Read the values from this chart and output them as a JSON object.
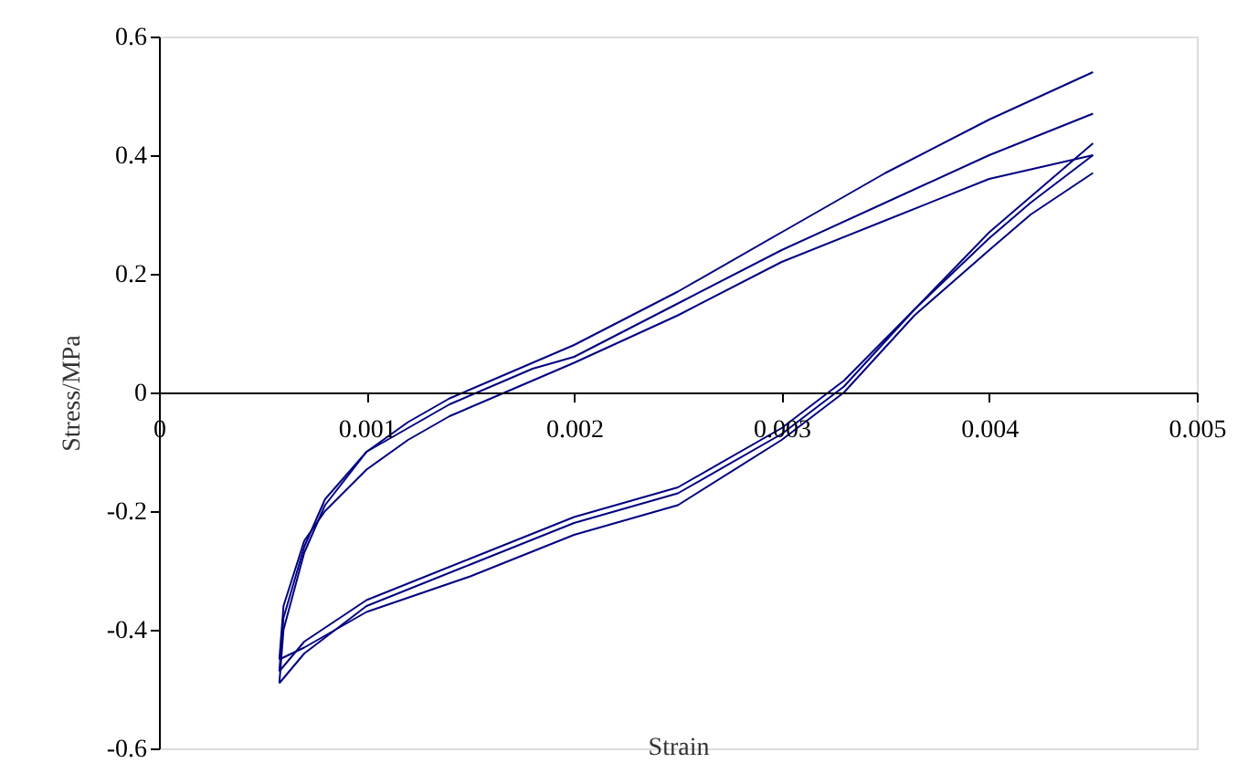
{
  "chart_data": {
    "type": "line",
    "xlabel": "Strain",
    "ylabel": "Stress/MPa",
    "xlim": [
      0,
      0.005
    ],
    "xticks": [
      0,
      0.001,
      0.002,
      0.003,
      0.004,
      0.005
    ],
    "ylim": [
      -0.6,
      0.6
    ],
    "yticks": [
      -0.6,
      -0.4,
      -0.2,
      0,
      0.2,
      0.4,
      0.6
    ],
    "grid": false,
    "legend": false,
    "marker": "none",
    "line_style": "solid",
    "series": [
      {
        "color": "#000080",
        "x": [
          0.00058,
          0.0006,
          0.0007,
          0.0008,
          0.001,
          0.0012,
          0.0014,
          0.0016,
          0.0018,
          0.002,
          0.0025,
          0.003,
          0.0035,
          0.004,
          0.0045
        ],
        "values": [
          -0.49,
          -0.4,
          -0.27,
          -0.19,
          -0.1,
          -0.05,
          -0.01,
          0.02,
          0.05,
          0.08,
          0.17,
          0.27,
          0.37,
          0.46,
          0.54
        ]
      },
      {
        "color": "#000080",
        "x": [
          0.00058,
          0.0007,
          0.001,
          0.0015,
          0.002,
          0.0025,
          0.003,
          0.0033,
          0.00364,
          0.004,
          0.0042,
          0.0045
        ],
        "values": [
          -0.49,
          -0.44,
          -0.36,
          -0.29,
          -0.22,
          -0.17,
          -0.07,
          0.01,
          0.14,
          0.26,
          0.32,
          0.4
        ]
      },
      {
        "color": "#000080",
        "x": [
          0.00058,
          0.0006,
          0.0007,
          0.0008,
          0.001,
          0.0012,
          0.0014,
          0.0016,
          0.0018,
          0.002,
          0.0025,
          0.003,
          0.0035,
          0.004,
          0.0045
        ],
        "values": [
          -0.47,
          -0.38,
          -0.26,
          -0.18,
          -0.1,
          -0.06,
          -0.02,
          0.01,
          0.04,
          0.06,
          0.15,
          0.24,
          0.32,
          0.4,
          0.47
        ]
      },
      {
        "color": "#000080",
        "x": [
          0.00058,
          0.0007,
          0.001,
          0.0015,
          0.002,
          0.0025,
          0.003,
          0.0033,
          0.00364,
          0.004,
          0.0042,
          0.0045
        ],
        "values": [
          -0.47,
          -0.42,
          -0.35,
          -0.28,
          -0.21,
          -0.16,
          -0.06,
          0.02,
          0.14,
          0.27,
          0.33,
          0.42
        ]
      },
      {
        "color": "#000080",
        "x": [
          0.00058,
          0.0006,
          0.0007,
          0.0008,
          0.001,
          0.0012,
          0.0014,
          0.0016,
          0.0018,
          0.002,
          0.0025,
          0.003,
          0.0035,
          0.004,
          0.0045
        ],
        "values": [
          -0.45,
          -0.36,
          -0.25,
          -0.2,
          -0.13,
          -0.08,
          -0.04,
          -0.01,
          0.02,
          0.05,
          0.13,
          0.22,
          0.29,
          0.36,
          0.4
        ]
      },
      {
        "color": "#000080",
        "x": [
          0.00058,
          0.0007,
          0.001,
          0.0015,
          0.002,
          0.0025,
          0.003,
          0.0033,
          0.00364,
          0.004,
          0.0042,
          0.0045
        ],
        "values": [
          -0.45,
          -0.43,
          -0.37,
          -0.31,
          -0.24,
          -0.19,
          -0.08,
          0.0,
          0.13,
          0.24,
          0.3,
          0.37
        ]
      }
    ]
  }
}
